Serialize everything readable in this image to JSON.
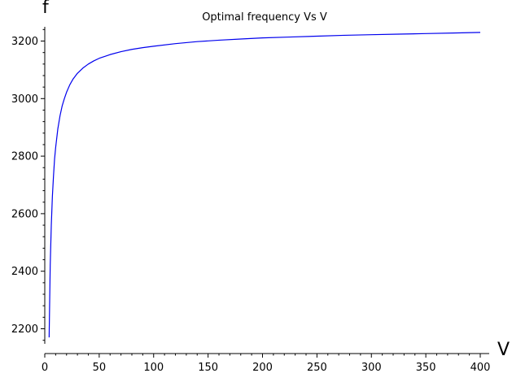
{
  "chart_data": {
    "type": "line",
    "title": "Optimal frequency Vs V",
    "xlabel": "V",
    "ylabel": "f",
    "xlim": [
      0,
      405
    ],
    "ylim": [
      2150,
      3250
    ],
    "grid": false,
    "legend": "none",
    "x_ticks": [
      0,
      50,
      100,
      150,
      200,
      250,
      300,
      350,
      400
    ],
    "x_tick_labels": [
      "0",
      "50",
      "100",
      "150",
      "200",
      "250",
      "300",
      "350",
      "400"
    ],
    "y_ticks": [
      2200,
      2400,
      2600,
      2800,
      3000,
      3200
    ],
    "y_tick_labels": [
      "2200",
      "2400",
      "2600",
      "2800",
      "3000",
      "3200"
    ],
    "series": [
      {
        "color": "#0000ee",
        "x": [
          4,
          5,
          6,
          7,
          8,
          9,
          10,
          12,
          14,
          16,
          18,
          20,
          23,
          26,
          30,
          35,
          40,
          45,
          50,
          60,
          70,
          80,
          90,
          100,
          120,
          140,
          160,
          180,
          200,
          225,
          250,
          275,
          300,
          325,
          350,
          375,
          400
        ],
        "y": [
          2170,
          2420,
          2560,
          2660,
          2730,
          2790,
          2830,
          2895,
          2940,
          2975,
          3000,
          3022,
          3048,
          3068,
          3088,
          3106,
          3120,
          3131,
          3140,
          3153,
          3163,
          3171,
          3177,
          3182,
          3191,
          3198,
          3203,
          3207,
          3211,
          3214,
          3217,
          3220,
          3222,
          3224,
          3226,
          3228,
          3230
        ]
      }
    ]
  }
}
